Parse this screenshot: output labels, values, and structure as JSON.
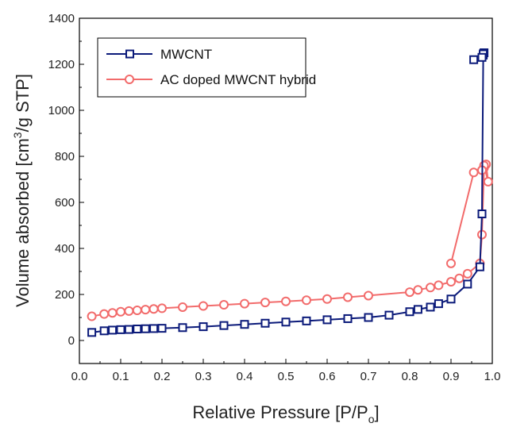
{
  "chart_data": {
    "type": "line",
    "xlabel": "Relative Pressure [P/P",
    "xlabel_sub": "o",
    "xlabel_end": "]",
    "ylabel": "Volume absorbed [cm",
    "ylabel_sup": "3",
    "ylabel_end": "/g STP]",
    "xlim": [
      0.0,
      1.0
    ],
    "ylim": [
      -100,
      1400
    ],
    "x_ticks": [
      "0.0",
      "0.1",
      "0.2",
      "0.3",
      "0.4",
      "0.5",
      "0.6",
      "0.7",
      "0.8",
      "0.9",
      "1.0"
    ],
    "y_ticks": [
      "0",
      "200",
      "400",
      "600",
      "800",
      "1000",
      "1200",
      "1400"
    ],
    "grid": false,
    "legend_position": "top-left",
    "series": [
      {
        "name": "MWCNT",
        "color": "#0b1a7a",
        "marker": "square",
        "x": [
          0.03,
          0.06,
          0.08,
          0.1,
          0.12,
          0.14,
          0.16,
          0.18,
          0.2,
          0.25,
          0.3,
          0.35,
          0.4,
          0.45,
          0.5,
          0.55,
          0.6,
          0.65,
          0.7,
          0.75,
          0.8,
          0.82,
          0.85,
          0.87,
          0.9,
          0.94,
          0.97,
          0.975,
          0.978,
          0.98,
          0.978,
          0.975,
          0.955
        ],
        "y": [
          35,
          42,
          45,
          47,
          48,
          50,
          51,
          52,
          53,
          56,
          60,
          65,
          70,
          75,
          80,
          85,
          90,
          95,
          100,
          110,
          125,
          135,
          145,
          160,
          180,
          245,
          320,
          550,
          1240,
          1250,
          1245,
          1230,
          1220
        ]
      },
      {
        "name": "AC doped MWCNT hybrid",
        "color": "#f26b6b",
        "marker": "circle",
        "x": [
          0.03,
          0.06,
          0.08,
          0.1,
          0.12,
          0.14,
          0.16,
          0.18,
          0.2,
          0.25,
          0.3,
          0.35,
          0.4,
          0.45,
          0.5,
          0.55,
          0.6,
          0.65,
          0.7,
          0.8,
          0.82,
          0.85,
          0.87,
          0.9,
          0.92,
          0.94,
          0.97,
          0.975,
          0.98,
          0.985,
          0.99,
          0.98,
          0.975,
          0.955,
          0.9
        ],
        "y": [
          105,
          115,
          120,
          125,
          128,
          131,
          134,
          137,
          140,
          145,
          150,
          155,
          160,
          165,
          170,
          175,
          180,
          188,
          195,
          210,
          220,
          230,
          240,
          255,
          270,
          290,
          335,
          460,
          750,
          765,
          690,
          760,
          740,
          730,
          335
        ]
      }
    ]
  }
}
